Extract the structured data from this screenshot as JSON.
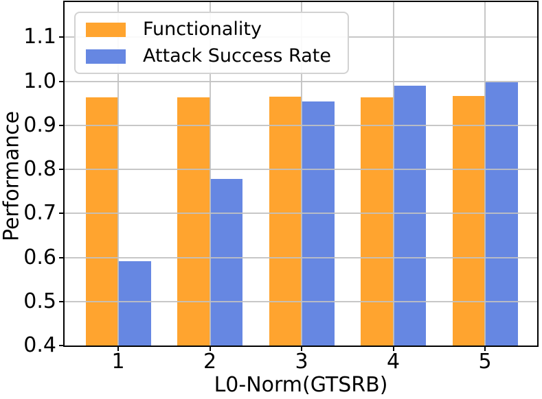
{
  "chart_data": {
    "type": "bar",
    "title": "",
    "xlabel": "L0-Norm(GTSRB)",
    "ylabel": "Performance",
    "categories": [
      "1",
      "2",
      "3",
      "4",
      "5"
    ],
    "series": [
      {
        "name": "Functionality",
        "color": "#FFA42F",
        "values": [
          0.964,
          0.964,
          0.965,
          0.963,
          0.967
        ]
      },
      {
        "name": "Attack Success Rate",
        "color": "#6687E2",
        "values": [
          0.592,
          0.778,
          0.954,
          0.99,
          0.998
        ]
      }
    ],
    "ylim": [
      0.4,
      1.18
    ],
    "yticks": [
      0.4,
      0.5,
      0.6,
      0.7,
      0.8,
      0.9,
      1.0,
      1.1
    ],
    "bar_bottom": 0.4,
    "grid": true,
    "grid_over_bars": true,
    "legend_position": "upper left",
    "bar_width_fraction": 0.35
  },
  "colors": {
    "grid": "rgba(193,193,193,0.9)",
    "spine": "#000000",
    "legend_border": "#d2d2d2"
  }
}
